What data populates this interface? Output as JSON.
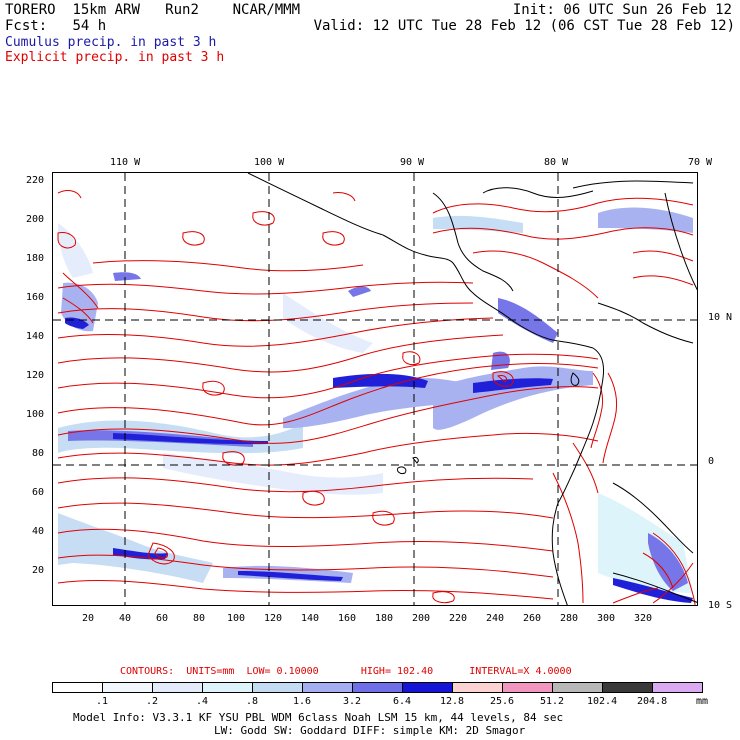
{
  "header": {
    "model": "TORERO",
    "resolution": "15km ARW",
    "run": "Run2",
    "org": "NCAR/MMM",
    "init": "Init: 06 UTC Sun 26 Feb 12",
    "fcst_label": "Fcst:",
    "fcst_value": "54 h",
    "valid": "Valid: 12 UTC Tue 28 Feb 12 (06 CST Tue 28 Feb 12)",
    "line_cumulus": "Cumulus precip. in past 3 h",
    "line_explicit": "Explicit precip. in past 3 h"
  },
  "colors": {
    "cumulus_text": "#1a1aa6",
    "explicit_text": "#e00000",
    "contour": "#e00000",
    "grid": "#000000"
  },
  "top_axis": [
    "110 W",
    "100 W",
    "90 W",
    "80 W",
    "70 W"
  ],
  "left_axis": [
    "220",
    "200",
    "180",
    "160",
    "140",
    "120",
    "100",
    "80",
    "60",
    "40",
    "20"
  ],
  "right_axis": [
    "10 N",
    "0",
    "10 S"
  ],
  "bottom_axis": [
    "20",
    "40",
    "60",
    "80",
    "100",
    "120",
    "140",
    "160",
    "180",
    "200",
    "220",
    "240",
    "260",
    "280",
    "300",
    "320"
  ],
  "contours": {
    "label": "CONTOURS:",
    "units": "UNITS=mm",
    "low": "LOW= 0.10000",
    "high": "HIGH= 102.40",
    "interval": "INTERVAL=X  4.0000"
  },
  "legend": {
    "labels": [
      ".1",
      ".2",
      ".4",
      ".8",
      "1.6",
      "3.2",
      "6.4",
      "12.8",
      "25.6",
      "51.2",
      "102.4",
      "204.8"
    ],
    "unit": "mm",
    "colors": [
      "#ffffff",
      "#f2f6fd",
      "#e4ecfb",
      "#ddf4fb",
      "#c3dcf4",
      "#a4aef0",
      "#6f6fe8",
      "#1515d8",
      "#fcd2d2",
      "#f296c0",
      "#b8b8b8",
      "#3a3a3a",
      "#dcaaf2"
    ]
  },
  "footer": {
    "line1": "Model Info: V3.3.1   KF    YSU PBL  WDM 6class  Noah LSM  15 km,   44 levels,   84 sec",
    "line2": "LW: Godd SW: Goddard DIFF: simple KM: 2D Smagor"
  }
}
